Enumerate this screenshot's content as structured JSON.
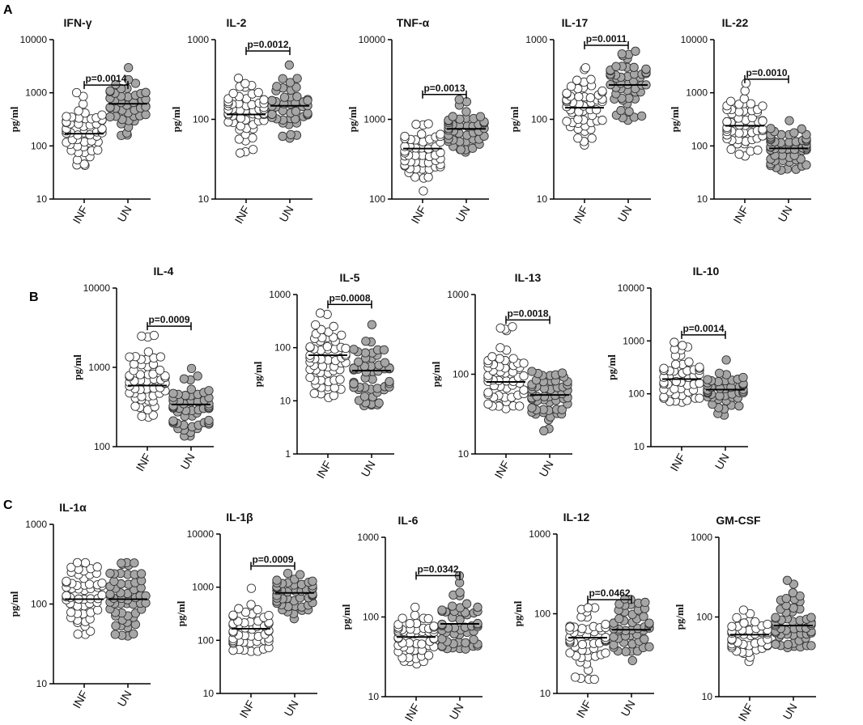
{
  "figure": {
    "panel_letters": [
      "A",
      "B",
      "C"
    ]
  },
  "chart_data": [
    {
      "type": "scatter",
      "title": "IFN-γ",
      "ylabel": "pg/ml",
      "scale": "log",
      "ylim": [
        10,
        10000
      ],
      "yticks": [
        "10",
        "100",
        "1000",
        "10000"
      ],
      "categories": [
        "INF",
        "UN"
      ],
      "series": [
        {
          "name": "INF",
          "color": "#ffffff",
          "median": 170,
          "min": 45,
          "max": 1050,
          "n": 55
        },
        {
          "name": "UN",
          "color": "#a6a6a6",
          "median": 620,
          "min": 160,
          "max": 3000,
          "n": 45
        }
      ],
      "p_value": "p=0.0014",
      "bracket_y": 1400
    },
    {
      "type": "scatter",
      "title": "IL-2",
      "ylabel": "pg/ml",
      "scale": "log",
      "ylim": [
        10,
        1000
      ],
      "yticks": [
        "10",
        "100",
        "1000"
      ],
      "categories": [
        "INF",
        "UN"
      ],
      "series": [
        {
          "name": "INF",
          "color": "#ffffff",
          "median": 115,
          "min": 38,
          "max": 330,
          "n": 55
        },
        {
          "name": "UN",
          "color": "#a6a6a6",
          "median": 148,
          "min": 60,
          "max": 490,
          "n": 50
        }
      ],
      "p_value": "p=0.0012",
      "bracket_y": 720
    },
    {
      "type": "scatter",
      "title": "TNF-α",
      "ylabel": "pg/ml",
      "scale": "log",
      "ylim": [
        100,
        10000
      ],
      "yticks": [
        "100",
        "1000",
        "10000"
      ],
      "categories": [
        "INF",
        "UN"
      ],
      "series": [
        {
          "name": "INF",
          "color": "#ffffff",
          "median": 430,
          "min": 130,
          "max": 880,
          "n": 50
        },
        {
          "name": "UN",
          "color": "#a6a6a6",
          "median": 760,
          "min": 390,
          "max": 1750,
          "n": 45
        }
      ],
      "p_value": "p=0.0013",
      "bracket_y": 2050
    },
    {
      "type": "scatter",
      "title": "IL-17",
      "ylabel": "pg/ml",
      "scale": "log",
      "ylim": [
        10,
        1000
      ],
      "yticks": [
        "10",
        "100",
        "1000"
      ],
      "categories": [
        "INF",
        "UN"
      ],
      "series": [
        {
          "name": "INF",
          "color": "#ffffff",
          "median": 140,
          "min": 48,
          "max": 450,
          "n": 55
        },
        {
          "name": "UN",
          "color": "#a6a6a6",
          "median": 270,
          "min": 100,
          "max": 700,
          "n": 50
        }
      ],
      "p_value": "p=0.0011",
      "bracket_y": 850
    },
    {
      "type": "scatter",
      "title": "IL-22",
      "ylabel": "pg/ml",
      "scale": "log",
      "ylim": [
        10,
        10000
      ],
      "yticks": [
        "10",
        "100",
        "1000",
        "10000"
      ],
      "categories": [
        "INF",
        "UN"
      ],
      "series": [
        {
          "name": "INF",
          "color": "#ffffff",
          "median": 240,
          "min": 65,
          "max": 1500,
          "n": 55
        },
        {
          "name": "UN",
          "color": "#a6a6a6",
          "median": 90,
          "min": 35,
          "max": 290,
          "n": 55
        }
      ],
      "p_value": "p=0.0010",
      "bracket_y": 1800
    },
    {
      "type": "scatter",
      "title": "IL-4",
      "ylabel": "pg/ml",
      "scale": "log",
      "ylim": [
        100,
        10000
      ],
      "yticks": [
        "100",
        "1000",
        "10000"
      ],
      "categories": [
        "INF",
        "UN"
      ],
      "series": [
        {
          "name": "INF",
          "color": "#ffffff",
          "median": 590,
          "min": 230,
          "max": 2600,
          "n": 55
        },
        {
          "name": "UN",
          "color": "#a6a6a6",
          "median": 340,
          "min": 135,
          "max": 950,
          "n": 55
        }
      ],
      "p_value": "p=0.0009",
      "bracket_y": 3300
    },
    {
      "type": "scatter",
      "title": "IL-5",
      "ylabel": "pg/ml",
      "scale": "log",
      "ylim": [
        1,
        1000
      ],
      "yticks": [
        "1",
        "10",
        "100",
        "1000"
      ],
      "categories": [
        "INF",
        "UN"
      ],
      "series": [
        {
          "name": "INF",
          "color": "#ffffff",
          "median": 72,
          "min": 12,
          "max": 460,
          "n": 60
        },
        {
          "name": "UN",
          "color": "#a6a6a6",
          "median": 37,
          "min": 8,
          "max": 280,
          "n": 55
        }
      ],
      "p_value": "p=0.0008",
      "bracket_y": 650
    },
    {
      "type": "scatter",
      "title": "IL-13",
      "ylabel": "pg/ml",
      "scale": "log",
      "ylim": [
        10,
        1000
      ],
      "yticks": [
        "10",
        "100",
        "1000"
      ],
      "categories": [
        "INF",
        "UN"
      ],
      "series": [
        {
          "name": "INF",
          "color": "#ffffff",
          "median": 80,
          "min": 38,
          "max": 400,
          "n": 55
        },
        {
          "name": "UN",
          "color": "#a6a6a6",
          "median": 55,
          "min": 20,
          "max": 110,
          "n": 55
        }
      ],
      "p_value": "p=0.0018",
      "bracket_y": 480
    },
    {
      "type": "scatter",
      "title": "IL-10",
      "ylabel": "pg/ml",
      "scale": "log",
      "ylim": [
        10,
        10000
      ],
      "yticks": [
        "10",
        "100",
        "1000",
        "10000"
      ],
      "categories": [
        "INF",
        "UN"
      ],
      "series": [
        {
          "name": "INF",
          "color": "#ffffff",
          "median": 190,
          "min": 70,
          "max": 900,
          "n": 50
        },
        {
          "name": "UN",
          "color": "#a6a6a6",
          "median": 120,
          "min": 38,
          "max": 420,
          "n": 50
        }
      ],
      "p_value": "p=0.0014",
      "bracket_y": 1300
    },
    {
      "type": "scatter",
      "title": "IL-1α",
      "ylabel": "pg/ml",
      "scale": "log",
      "ylim": [
        10,
        1000
      ],
      "yticks": [
        "10",
        "100",
        "1000"
      ],
      "categories": [
        "INF",
        "UN"
      ],
      "series": [
        {
          "name": "INF",
          "color": "#ffffff",
          "median": 115,
          "min": 42,
          "max": 330,
          "n": 55
        },
        {
          "name": "UN",
          "color": "#a6a6a6",
          "median": 115,
          "min": 40,
          "max": 330,
          "n": 55
        }
      ],
      "p_value": "",
      "bracket_y": 0
    },
    {
      "type": "scatter",
      "title": "IL-1β",
      "ylabel": "pg/ml",
      "scale": "log",
      "ylim": [
        10,
        10000
      ],
      "yticks": [
        "10",
        "100",
        "1000",
        "10000"
      ],
      "categories": [
        "INF",
        "UN"
      ],
      "series": [
        {
          "name": "INF",
          "color": "#ffffff",
          "median": 165,
          "min": 62,
          "max": 950,
          "n": 50
        },
        {
          "name": "UN",
          "color": "#a6a6a6",
          "median": 780,
          "min": 260,
          "max": 1800,
          "n": 50
        }
      ],
      "p_value": "p=0.0009",
      "bracket_y": 2500
    },
    {
      "type": "scatter",
      "title": "IL-6",
      "ylabel": "pg/ml",
      "scale": "log",
      "ylim": [
        10,
        1000
      ],
      "yticks": [
        "10",
        "100",
        "1000"
      ],
      "categories": [
        "INF",
        "UN"
      ],
      "series": [
        {
          "name": "INF",
          "color": "#ffffff",
          "median": 56,
          "min": 26,
          "max": 130,
          "n": 55
        },
        {
          "name": "UN",
          "color": "#a6a6a6",
          "median": 82,
          "min": 40,
          "max": 330,
          "n": 55
        }
      ],
      "p_value": "p=0.0342",
      "bracket_y": 330
    },
    {
      "type": "scatter",
      "title": "IL-12",
      "ylabel": "pg/ml",
      "scale": "log",
      "ylim": [
        10,
        1000
      ],
      "yticks": [
        "10",
        "100",
        "1000"
      ],
      "categories": [
        "INF",
        "UN"
      ],
      "series": [
        {
          "name": "INF",
          "color": "#ffffff",
          "median": 50,
          "min": 15,
          "max": 120,
          "n": 55
        },
        {
          "name": "UN",
          "color": "#a6a6a6",
          "median": 63,
          "min": 25,
          "max": 150,
          "n": 50
        }
      ],
      "p_value": "p=0.0462",
      "bracket_y": 150
    },
    {
      "type": "scatter",
      "title": "GM-CSF",
      "ylabel": "pg/ml",
      "scale": "log",
      "ylim": [
        10,
        1000
      ],
      "yticks": [
        "10",
        "100",
        "1000"
      ],
      "categories": [
        "INF",
        "UN"
      ],
      "series": [
        {
          "name": "INF",
          "color": "#ffffff",
          "median": 60,
          "min": 28,
          "max": 120,
          "n": 45
        },
        {
          "name": "UN",
          "color": "#a6a6a6",
          "median": 78,
          "min": 42,
          "max": 280,
          "n": 55
        }
      ],
      "p_value": "",
      "bracket_y": 0
    }
  ]
}
